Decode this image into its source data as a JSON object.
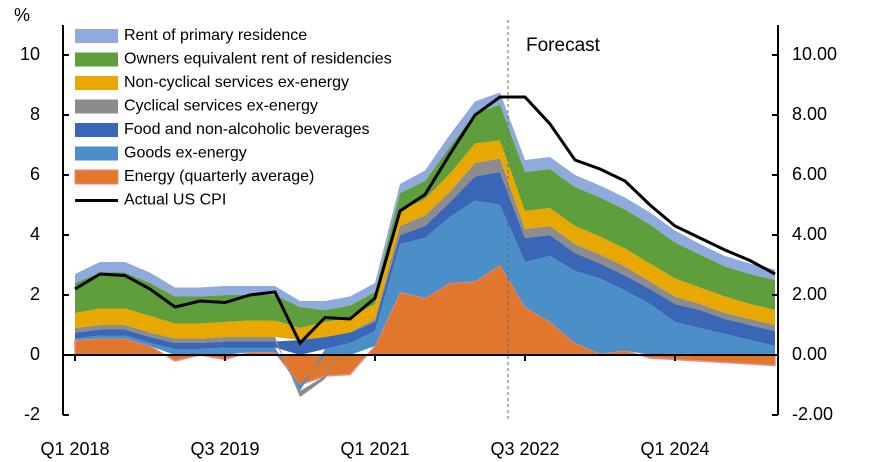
{
  "chart_data": {
    "type": "area",
    "stacked": true,
    "y_label": "%",
    "annotation": "Forecast",
    "categories": [
      "Q1 2018",
      null,
      null,
      null,
      null,
      null,
      "Q3 2019",
      null,
      null,
      null,
      null,
      null,
      "Q1 2021",
      null,
      null,
      null,
      null,
      null,
      "Q3 2022",
      null,
      null,
      null,
      null,
      null,
      "Q1 2024",
      null,
      null,
      null,
      null
    ],
    "series": [
      {
        "name": "Rent of primary residence",
        "color": "#8faadc",
        "values": [
          0.3,
          0.35,
          0.35,
          0.35,
          0.3,
          0.3,
          0.3,
          0.3,
          0.3,
          0.2,
          0.3,
          0.3,
          0.3,
          0.3,
          0.35,
          0.4,
          0.4,
          0.4,
          0.4,
          0.4,
          0.4,
          0.4,
          0.4,
          0.4,
          0.4,
          0.35,
          0.35,
          0.35,
          0.35
        ]
      },
      {
        "name": "Owners equivalent rent of residencies",
        "color": "#5f9e3c",
        "values": [
          1.0,
          1.2,
          1.2,
          1.1,
          0.9,
          0.9,
          0.9,
          0.85,
          0.85,
          0.7,
          0.4,
          0.4,
          0.4,
          0.6,
          0.6,
          0.9,
          1.0,
          1.2,
          1.3,
          1.3,
          1.3,
          1.3,
          1.3,
          1.3,
          1.2,
          1.1,
          1.0,
          1.0,
          1.0
        ]
      },
      {
        "name": "Non-cyclical services ex-energy",
        "color": "#e8a800",
        "values": [
          0.5,
          0.55,
          0.55,
          0.55,
          0.5,
          0.5,
          0.5,
          0.55,
          0.55,
          0.4,
          0.5,
          0.5,
          0.5,
          0.5,
          0.55,
          0.6,
          0.65,
          0.6,
          0.6,
          0.6,
          0.6,
          0.6,
          0.6,
          0.6,
          0.6,
          0.55,
          0.55,
          0.5,
          0.5
        ]
      },
      {
        "name": "Cyclical services ex-energy",
        "color": "#8c8c8c",
        "values": [
          0.15,
          0.15,
          0.15,
          0.15,
          0.15,
          0.15,
          0.15,
          0.15,
          0.15,
          -0.2,
          -0.1,
          0.0,
          0.1,
          0.3,
          0.35,
          0.35,
          0.45,
          0.45,
          0.3,
          0.3,
          0.3,
          0.3,
          0.3,
          0.25,
          0.25,
          0.2,
          0.2,
          0.2,
          0.2
        ]
      },
      {
        "name": "Food and non-alcoholic beverages",
        "color": "#3a66b8",
        "values": [
          0.2,
          0.2,
          0.2,
          0.2,
          0.2,
          0.2,
          0.2,
          0.2,
          0.2,
          0.5,
          0.4,
          0.35,
          0.3,
          0.3,
          0.4,
          0.5,
          0.8,
          1.1,
          0.8,
          0.7,
          0.6,
          0.5,
          0.5,
          0.5,
          0.6,
          0.6,
          0.5,
          0.5,
          0.5
        ]
      },
      {
        "name": "Goods ex-energy",
        "color": "#4a8fc8",
        "values": [
          0.05,
          0.1,
          0.1,
          0.1,
          0.2,
          0.2,
          0.25,
          0.15,
          0.15,
          -0.2,
          0.2,
          0.4,
          0.5,
          1.6,
          2.0,
          2.2,
          2.7,
          2.0,
          1.5,
          2.2,
          2.4,
          2.5,
          2.0,
          1.7,
          1.1,
          0.9,
          0.7,
          0.5,
          0.3
        ]
      },
      {
        "name": "Energy (quarterly average)",
        "color": "#e0772c",
        "values": [
          0.5,
          0.55,
          0.55,
          0.3,
          -0.2,
          0.0,
          -0.15,
          0.1,
          0.1,
          -1.0,
          -0.7,
          -0.65,
          0.3,
          2.1,
          1.9,
          2.4,
          2.45,
          3.0,
          1.6,
          1.1,
          0.4,
          0.05,
          0.15,
          -0.1,
          -0.15,
          -0.2,
          -0.25,
          -0.3,
          -0.35
        ]
      },
      {
        "name": "Actual US CPI",
        "color": "#000000",
        "line": true,
        "values": [
          2.2,
          2.7,
          2.65,
          2.2,
          1.6,
          1.8,
          1.75,
          2.0,
          2.1,
          0.4,
          1.25,
          1.2,
          1.9,
          4.8,
          5.35,
          6.7,
          8.0,
          8.6,
          8.6,
          7.7,
          6.5,
          6.2,
          5.8,
          5.0,
          4.3,
          3.9,
          3.5,
          3.15,
          2.7
        ]
      }
    ],
    "ylim": [
      -2,
      11
    ],
    "yticks": [
      -2,
      0,
      2,
      4,
      6,
      8,
      10
    ],
    "y2lim": [
      -2,
      11
    ],
    "y2ticks": [
      {
        "value": -2,
        "label": "-2.00"
      },
      {
        "value": 0,
        "label": "0.00"
      },
      {
        "value": 2,
        "label": "2.00"
      },
      {
        "value": 4,
        "label": "4.00"
      },
      {
        "value": 6,
        "label": "6.00"
      },
      {
        "value": 8,
        "label": "8.00"
      },
      {
        "value": 10,
        "label": "10.00"
      }
    ],
    "legend": "upper left"
  }
}
